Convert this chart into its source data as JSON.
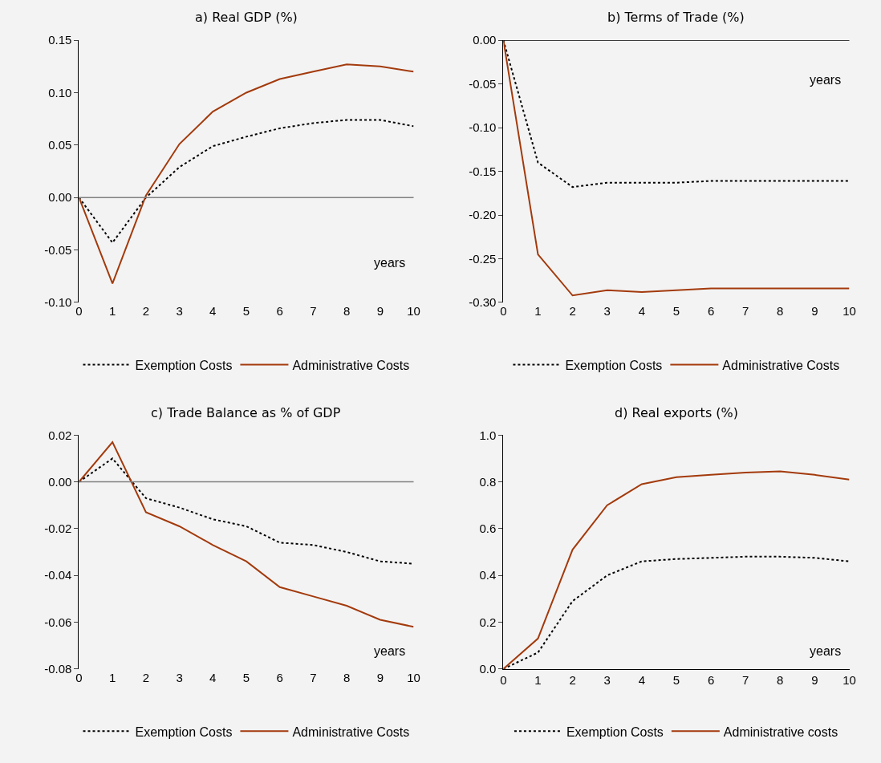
{
  "chart_data": [
    {
      "type": "line",
      "title": "a) Real GDP (%)",
      "xlabel": "years",
      "x": [
        0,
        1,
        2,
        3,
        4,
        5,
        6,
        7,
        8,
        9,
        10
      ],
      "xlim": [
        0,
        10
      ],
      "xticks": [
        0,
        1,
        2,
        3,
        4,
        5,
        6,
        7,
        8,
        9,
        10
      ],
      "ylim": [
        -0.1,
        0.15
      ],
      "yticks": [
        {
          "value": -0.1,
          "label": "-0.10"
        },
        {
          "value": -0.05,
          "label": "-0.05"
        },
        {
          "value": 0,
          "label": "0.00"
        },
        {
          "value": 0.05,
          "label": "0.05"
        },
        {
          "value": 0.1,
          "label": "0.10"
        },
        {
          "value": 0.15,
          "label": "0.15"
        }
      ],
      "grid": false,
      "legend": "bottom",
      "ref_lines": [
        {
          "axis": "y",
          "value": 0,
          "color": "#808080"
        }
      ],
      "series": [
        {
          "name": "Exemption Costs",
          "color": "#000000",
          "line_style": "dotted",
          "values": [
            0,
            -0.043,
            0.0,
            0.029,
            0.049,
            0.058,
            0.066,
            0.071,
            0.074,
            0.074,
            0.068
          ]
        },
        {
          "name": "Administrative Costs",
          "color": "#a33a0c",
          "line_style": "solid",
          "values": [
            0,
            -0.082,
            0.002,
            0.051,
            0.082,
            0.1,
            0.113,
            0.12,
            0.127,
            0.125,
            0.12
          ]
        }
      ]
    },
    {
      "type": "line",
      "title": "b) Terms of Trade (%)",
      "xlabel": "years",
      "x": [
        0,
        1,
        2,
        3,
        4,
        5,
        6,
        7,
        8,
        9,
        10
      ],
      "xlim": [
        0,
        10
      ],
      "xticks": [
        0,
        1,
        2,
        3,
        4,
        5,
        6,
        7,
        8,
        9,
        10
      ],
      "ylim": [
        -0.3,
        0
      ],
      "yticks": [
        {
          "value": -0.3,
          "label": "-0.30"
        },
        {
          "value": -0.25,
          "label": "-0.25"
        },
        {
          "value": -0.2,
          "label": "-0.20"
        },
        {
          "value": -0.15,
          "label": "-0.15"
        },
        {
          "value": -0.1,
          "label": "-0.10"
        },
        {
          "value": -0.05,
          "label": "-0.05"
        },
        {
          "value": 0,
          "label": "0.00"
        }
      ],
      "grid": false,
      "legend": "bottom",
      "ref_lines": [
        {
          "axis": "y",
          "value": 0,
          "color": "#000000"
        }
      ],
      "series": [
        {
          "name": "Exemption Costs",
          "color": "#000000",
          "line_style": "dotted",
          "values": [
            0,
            -0.14,
            -0.168,
            -0.163,
            -0.163,
            -0.163,
            -0.161,
            -0.161,
            -0.161,
            -0.161,
            -0.161
          ]
        },
        {
          "name": "Administrative Costs",
          "color": "#a33a0c",
          "line_style": "solid",
          "values": [
            0,
            -0.245,
            -0.292,
            -0.286,
            -0.288,
            -0.286,
            -0.284,
            -0.284,
            -0.284,
            -0.284,
            -0.284
          ]
        }
      ]
    },
    {
      "type": "line",
      "title": "c) Trade Balance as % of GDP",
      "xlabel": "years",
      "x": [
        0,
        1,
        2,
        3,
        4,
        5,
        6,
        7,
        8,
        9,
        10
      ],
      "xlim": [
        0,
        10
      ],
      "xticks": [
        0,
        1,
        2,
        3,
        4,
        5,
        6,
        7,
        8,
        9,
        10
      ],
      "ylim": [
        -0.08,
        0.02
      ],
      "yticks": [
        {
          "value": -0.08,
          "label": "-0.08"
        },
        {
          "value": -0.06,
          "label": "-0.06"
        },
        {
          "value": -0.04,
          "label": "-0.04"
        },
        {
          "value": -0.02,
          "label": "-0.02"
        },
        {
          "value": 0,
          "label": "0.00"
        },
        {
          "value": 0.02,
          "label": "0.02"
        }
      ],
      "grid": false,
      "legend": "bottom",
      "ref_lines": [
        {
          "axis": "y",
          "value": 0,
          "color": "#808080"
        }
      ],
      "series": [
        {
          "name": "Exemption Costs",
          "color": "#000000",
          "line_style": "dotted",
          "values": [
            0,
            0.01,
            -0.007,
            -0.011,
            -0.016,
            -0.019,
            -0.026,
            -0.027,
            -0.03,
            -0.034,
            -0.035
          ]
        },
        {
          "name": "Administrative Costs",
          "color": "#a33a0c",
          "line_style": "solid",
          "values": [
            0,
            0.017,
            -0.013,
            -0.019,
            -0.027,
            -0.034,
            -0.045,
            -0.049,
            -0.053,
            -0.059,
            -0.062
          ]
        }
      ]
    },
    {
      "type": "line",
      "title": "d) Real exports (%)",
      "xlabel": "years",
      "x": [
        0,
        1,
        2,
        3,
        4,
        5,
        6,
        7,
        8,
        9,
        10
      ],
      "xlim": [
        0,
        10
      ],
      "xticks": [
        0,
        1,
        2,
        3,
        4,
        5,
        6,
        7,
        8,
        9,
        10
      ],
      "ylim": [
        0,
        1
      ],
      "yticks": [
        {
          "value": 0,
          "label": "0.0"
        },
        {
          "value": 0.2,
          "label": "0.2"
        },
        {
          "value": 0.4,
          "label": "0.4"
        },
        {
          "value": 0.6,
          "label": "0.6"
        },
        {
          "value": 0.8,
          "label": "0.8"
        },
        {
          "value": 1,
          "label": "1.0"
        }
      ],
      "grid": false,
      "legend": "bottom",
      "series": [
        {
          "name": "Exemption Costs",
          "color": "#000000",
          "line_style": "dotted",
          "values": [
            0,
            0.07,
            0.29,
            0.4,
            0.46,
            0.47,
            0.475,
            0.48,
            0.48,
            0.475,
            0.46
          ]
        },
        {
          "name": "Administrative costs",
          "color": "#a33a0c",
          "line_style": "solid",
          "values": [
            0,
            0.13,
            0.51,
            0.7,
            0.79,
            0.82,
            0.83,
            0.84,
            0.845,
            0.83,
            0.81
          ]
        }
      ]
    }
  ]
}
